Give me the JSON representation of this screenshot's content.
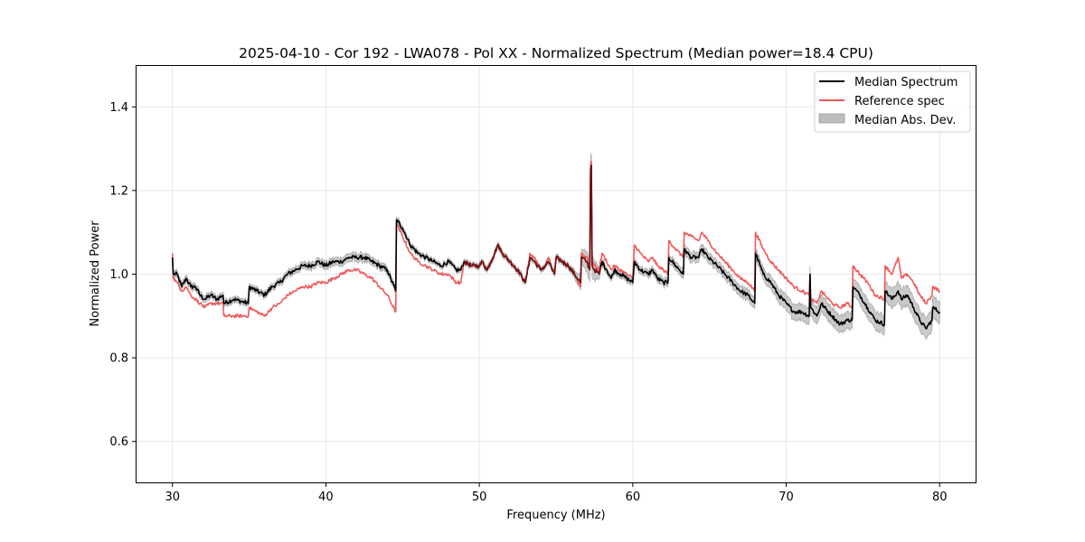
{
  "chart_data": {
    "type": "line",
    "title": "2025-04-10 - Cor 192 - LWA078 - Pol XX - Normalized Spectrum (Median power=18.4 CPU)",
    "xlabel": "Frequency (MHz)",
    "ylabel": "Normalized Power",
    "xlim": [
      27.6,
      82.4
    ],
    "ylim": [
      0.5,
      1.5
    ],
    "xticks": [
      30,
      40,
      50,
      60,
      70,
      80
    ],
    "xtick_labels": [
      "30",
      "40",
      "50",
      "60",
      "70",
      "80"
    ],
    "yticks": [
      0.6,
      0.8,
      1.0,
      1.2,
      1.4
    ],
    "ytick_labels": [
      "0.6",
      "0.8",
      "1.0",
      "1.2",
      "1.4"
    ],
    "grid": true,
    "legend_position": "top-right",
    "legend": [
      "Median Spectrum",
      "Reference spec",
      "Median Abs. Dev."
    ],
    "colors": {
      "median": "#000000",
      "reference": "#f05a5a",
      "mad": "#bdbdbd",
      "grid": "#e6e6e6"
    },
    "series": [
      {
        "name": "Median Spectrum",
        "x": [
          30.0,
          30.05,
          30.3,
          30.6,
          30.9,
          31.2,
          31.5,
          31.8,
          32.1,
          32.5,
          32.9,
          33.3,
          33.35,
          34.0,
          34.95,
          35.0,
          35.5,
          36.0,
          36.5,
          37.0,
          37.5,
          38.0,
          38.5,
          39.0,
          39.5,
          40.0,
          40.5,
          41.0,
          41.5,
          42.0,
          42.5,
          43.0,
          43.5,
          44.0,
          44.55,
          44.6,
          45.0,
          45.5,
          46.0,
          46.5,
          47.0,
          47.5,
          48.0,
          48.5,
          48.8,
          49.0,
          49.5,
          50.0,
          50.2,
          50.5,
          51.0,
          51.2,
          51.5,
          52.0,
          52.5,
          53.0,
          53.3,
          53.6,
          54.0,
          54.3,
          54.5,
          54.9,
          55.0,
          55.4,
          55.8,
          56.2,
          56.6,
          56.65,
          57.0,
          57.2,
          57.25,
          57.3,
          57.35,
          57.5,
          57.8,
          58.0,
          58.3,
          58.6,
          58.8,
          59.2,
          59.6,
          60.0,
          60.1,
          60.5,
          61.0,
          61.3,
          61.6,
          62.0,
          62.3,
          62.35,
          62.8,
          63.3,
          63.35,
          63.8,
          64.3,
          64.5,
          64.9,
          65.5,
          66.0,
          66.5,
          67.0,
          67.5,
          67.95,
          68.0,
          68.5,
          69.0,
          69.5,
          70.0,
          70.5,
          71.0,
          71.5,
          71.55,
          71.6,
          72.0,
          72.3,
          72.5,
          73.0,
          73.5,
          74.0,
          74.3,
          74.35,
          74.8,
          75.3,
          75.8,
          76.4,
          76.45,
          76.9,
          77.3,
          77.5,
          77.9,
          78.3,
          78.7,
          79.1,
          79.5,
          79.55,
          80.0
        ],
        "values": [
          1.04,
          1.0,
          1.0,
          0.97,
          0.99,
          0.97,
          0.97,
          0.95,
          0.94,
          0.95,
          0.94,
          0.95,
          0.93,
          0.94,
          0.93,
          0.97,
          0.96,
          0.95,
          0.97,
          0.98,
          1.0,
          1.01,
          1.02,
          1.02,
          1.03,
          1.02,
          1.03,
          1.03,
          1.04,
          1.04,
          1.04,
          1.03,
          1.02,
          1.01,
          0.96,
          1.13,
          1.11,
          1.07,
          1.05,
          1.04,
          1.03,
          1.02,
          1.03,
          1.01,
          1.01,
          1.03,
          1.02,
          1.02,
          1.03,
          1.01,
          1.05,
          1.07,
          1.05,
          1.03,
          1.01,
          0.98,
          1.04,
          1.03,
          1.01,
          1.02,
          1.03,
          1.0,
          1.04,
          1.03,
          1.02,
          1.0,
          0.98,
          1.04,
          1.03,
          1.01,
          1.25,
          1.26,
          1.02,
          1.01,
          1.0,
          1.03,
          1.01,
          0.99,
          1.01,
          1.0,
          0.99,
          0.98,
          1.03,
          1.01,
          1.0,
          1.01,
          0.99,
          0.98,
          0.98,
          1.04,
          1.02,
          1.0,
          1.06,
          1.04,
          1.04,
          1.06,
          1.04,
          1.02,
          1.0,
          0.98,
          0.96,
          0.95,
          0.93,
          1.05,
          1.0,
          0.98,
          0.95,
          0.93,
          0.91,
          0.91,
          0.9,
          1.0,
          0.92,
          0.9,
          0.93,
          0.92,
          0.9,
          0.88,
          0.89,
          0.89,
          0.97,
          0.95,
          0.92,
          0.89,
          0.88,
          0.96,
          0.94,
          0.96,
          0.94,
          0.95,
          0.92,
          0.89,
          0.87,
          0.89,
          0.92,
          0.91
        ]
      },
      {
        "name": "Reference spec",
        "x": [
          30.0,
          30.05,
          30.3,
          30.6,
          30.9,
          31.2,
          31.5,
          31.8,
          32.1,
          32.5,
          32.9,
          33.3,
          33.35,
          34.0,
          34.95,
          35.0,
          35.5,
          36.0,
          36.5,
          37.0,
          37.5,
          38.0,
          38.5,
          39.0,
          39.5,
          40.0,
          40.5,
          41.0,
          41.5,
          42.0,
          42.5,
          43.0,
          43.5,
          44.0,
          44.55,
          44.6,
          45.0,
          45.5,
          46.0,
          46.5,
          47.0,
          47.5,
          48.0,
          48.5,
          48.8,
          49.0,
          49.5,
          50.0,
          50.2,
          50.5,
          51.0,
          51.2,
          51.5,
          52.0,
          52.5,
          53.0,
          53.3,
          53.6,
          54.0,
          54.3,
          54.5,
          54.9,
          55.0,
          55.4,
          55.8,
          56.2,
          56.6,
          56.65,
          57.0,
          57.2,
          57.25,
          57.3,
          57.35,
          57.5,
          57.8,
          58.0,
          58.3,
          58.6,
          58.8,
          59.2,
          59.6,
          60.0,
          60.1,
          60.5,
          61.0,
          61.3,
          61.6,
          62.0,
          62.3,
          62.35,
          62.8,
          63.3,
          63.35,
          63.8,
          64.3,
          64.5,
          64.9,
          65.5,
          66.0,
          66.5,
          67.0,
          67.5,
          67.95,
          68.0,
          68.5,
          69.0,
          69.5,
          70.0,
          70.5,
          71.0,
          71.5,
          71.55,
          71.6,
          72.0,
          72.3,
          72.5,
          73.0,
          73.5,
          74.0,
          74.3,
          74.35,
          74.8,
          75.3,
          75.8,
          76.4,
          76.45,
          76.9,
          77.3,
          77.5,
          77.9,
          78.3,
          78.7,
          79.1,
          79.5,
          79.55,
          80.0
        ],
        "values": [
          1.05,
          0.99,
          0.98,
          0.96,
          0.97,
          0.95,
          0.94,
          0.93,
          0.92,
          0.93,
          0.93,
          0.93,
          0.9,
          0.9,
          0.9,
          0.92,
          0.91,
          0.9,
          0.92,
          0.93,
          0.95,
          0.96,
          0.97,
          0.97,
          0.98,
          0.98,
          0.99,
          1.0,
          1.01,
          1.01,
          1.0,
          0.99,
          0.97,
          0.95,
          0.91,
          1.12,
          1.09,
          1.05,
          1.03,
          1.02,
          1.01,
          1.0,
          1.0,
          0.98,
          0.98,
          1.03,
          1.02,
          1.02,
          1.03,
          1.01,
          1.05,
          1.07,
          1.05,
          1.03,
          1.01,
          0.98,
          1.05,
          1.04,
          1.01,
          1.02,
          1.04,
          1.0,
          1.04,
          1.03,
          1.02,
          1.0,
          0.97,
          1.05,
          1.04,
          1.02,
          1.26,
          1.27,
          1.03,
          1.02,
          1.01,
          1.05,
          1.03,
          1.01,
          1.02,
          1.01,
          1.0,
          0.99,
          1.07,
          1.05,
          1.03,
          1.04,
          1.02,
          1.01,
          1.0,
          1.08,
          1.06,
          1.04,
          1.1,
          1.09,
          1.08,
          1.1,
          1.08,
          1.05,
          1.03,
          1.01,
          0.99,
          0.98,
          0.96,
          1.1,
          1.06,
          1.03,
          1.01,
          0.99,
          0.97,
          0.96,
          0.95,
          1.0,
          0.94,
          0.93,
          0.96,
          0.95,
          0.93,
          0.92,
          0.93,
          0.92,
          1.02,
          1.0,
          0.98,
          0.95,
          0.94,
          1.02,
          1.0,
          1.04,
          0.99,
          1.0,
          0.98,
          0.95,
          0.93,
          0.95,
          0.97,
          0.96
        ]
      }
    ],
    "mad_band": {
      "name": "Median Abs. Dev.",
      "x": [
        30.0,
        32.0,
        34.0,
        36.0,
        38.0,
        40.0,
        42.0,
        44.0,
        46.0,
        48.0,
        50.0,
        52.0,
        54.0,
        56.0,
        57.3,
        58.0,
        60.0,
        62.0,
        64.0,
        66.0,
        68.0,
        70.0,
        72.0,
        74.0,
        76.0,
        78.0,
        80.0
      ],
      "half_width": [
        0.008,
        0.008,
        0.007,
        0.007,
        0.008,
        0.009,
        0.01,
        0.008,
        0.006,
        0.006,
        0.006,
        0.006,
        0.006,
        0.006,
        0.03,
        0.007,
        0.008,
        0.009,
        0.012,
        0.012,
        0.013,
        0.018,
        0.02,
        0.02,
        0.022,
        0.024,
        0.026
      ]
    }
  }
}
